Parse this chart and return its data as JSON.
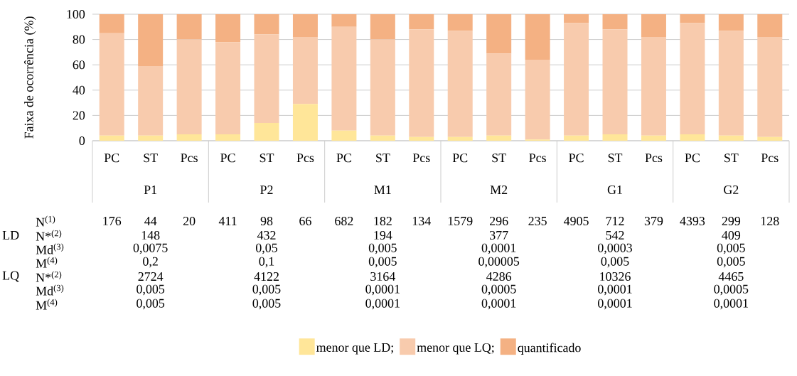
{
  "chart_data": {
    "type": "bar",
    "stacked": true,
    "ylabel": "Faixa de ocorrência (%)",
    "categories": [
      "PC",
      "ST",
      "Pcs",
      "PC",
      "ST",
      "Pcs",
      "PC",
      "ST",
      "Pcs",
      "PC",
      "ST",
      "Pcs",
      "PC",
      "ST",
      "Pcs",
      "PC",
      "ST",
      "Pcs"
    ],
    "series": [
      {
        "name": "menor que LD;",
        "color": "#ffe699",
        "values": [
          4,
          4,
          5,
          5,
          14,
          29,
          8,
          4,
          3,
          3,
          4,
          1,
          4,
          5,
          4,
          5,
          4,
          3
        ]
      },
      {
        "name": "menor que LQ;",
        "color": "#f8cbad",
        "values": [
          81,
          55,
          75,
          73,
          70,
          53,
          82,
          76,
          85,
          84,
          65,
          63,
          89,
          83,
          78,
          88,
          83,
          79
        ]
      },
      {
        "name": "quantificado",
        "color": "#f4b183",
        "values": [
          15,
          41,
          20,
          22,
          16,
          18,
          10,
          20,
          12,
          13,
          31,
          36,
          7,
          12,
          18,
          7,
          13,
          18
        ]
      }
    ],
    "ylim": [
      0,
      100
    ],
    "yticks": [
      0,
      20,
      40,
      60,
      80,
      100
    ],
    "grid": "y",
    "legend": "bottom",
    "annotations": [
      "P1",
      "P2",
      "M1",
      "M2",
      "G1",
      "G2",
      "LD",
      "LQ",
      "N$^{(1)}$",
      "N*$^{(2)}$",
      "Md$^{(3)}$",
      "M$^{(4)}$",
      "N*$^{(2)}$",
      "Md$^{(3)}$",
      "M$^{(4)}$",
      "176",
      "44",
      "20",
      "411",
      "98",
      "66",
      "682",
      "182",
      "134",
      "1579",
      "296",
      "235",
      "4905",
      "712",
      "379",
      "4393",
      "299",
      "128",
      "148",
      "432",
      "194",
      "377",
      "542",
      "409",
      "0,0075",
      "0,05",
      "0,005",
      "0,0001",
      "0,0003",
      "0,005",
      "0,2",
      "0,1",
      "0,005",
      "0,00005",
      "0,005",
      "0,005",
      "2724",
      "4122",
      "3164",
      "4286",
      "10326",
      "4465",
      "0,005",
      "0,005",
      "0,0001",
      "0,0005",
      "0,0001",
      "0,0005",
      "0,005",
      "0,005",
      "0,0001",
      "0,0001",
      "0,0001",
      "0,0001"
    ]
  }
}
